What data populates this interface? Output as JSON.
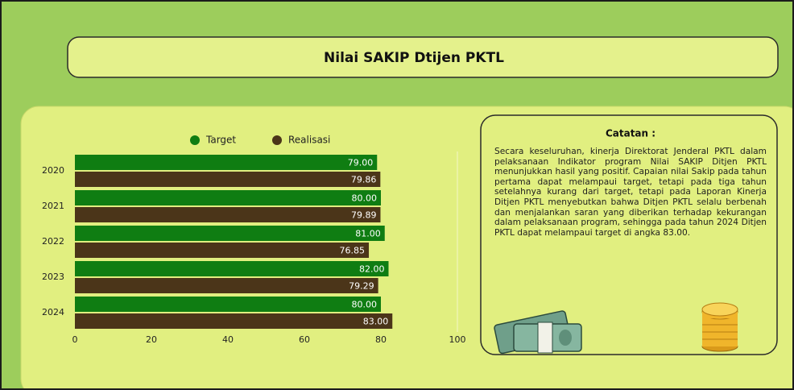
{
  "header": {
    "title": "Nilai SAKIP Dtijen PKTL"
  },
  "note": {
    "title": "Catatan :",
    "text": "Secara keseluruhan, kinerja Direktorat Jenderal PKTL dalam pelaksanaan Indikator program Nilai SAKIP Ditjen PKTL menunjukkan hasil yang positif. Capaian nilai Sakip pada tahun pertama dapat melampaui target, tetapi pada tiga tahun setelahnya kurang dari target, tetapi pada Laporan Kinerja Ditjen PKTL menyebutkan bahwa Ditjen PKTL selalu berbenah dan menjalankan saran yang diberikan terhadap kekurangan dalam pelaksanaan program, sehingga pada tahun 2024 Ditjen PKTL dapat melampaui target di angka 83.00."
  },
  "chart_data": {
    "type": "hbar",
    "categories": [
      "2020",
      "2021",
      "2022",
      "2023",
      "2024"
    ],
    "series": [
      {
        "name": "Target",
        "color": "#0f7d12",
        "values": [
          79,
          80,
          81,
          82,
          80
        ],
        "value_labels": [
          "79.00",
          "80.00",
          "81.00",
          "82.00",
          "80.00"
        ]
      },
      {
        "name": "Realisasi",
        "color": "#4b3519",
        "values": [
          79.86,
          79.89,
          76.85,
          79.29,
          83
        ],
        "value_labels": [
          "79.86",
          "79.89",
          "76.85",
          "79.29",
          "83.00"
        ]
      }
    ],
    "xlim": [
      0,
      100
    ],
    "xticks": [
      0,
      20,
      40,
      60,
      80,
      100
    ],
    "legend": "top"
  }
}
